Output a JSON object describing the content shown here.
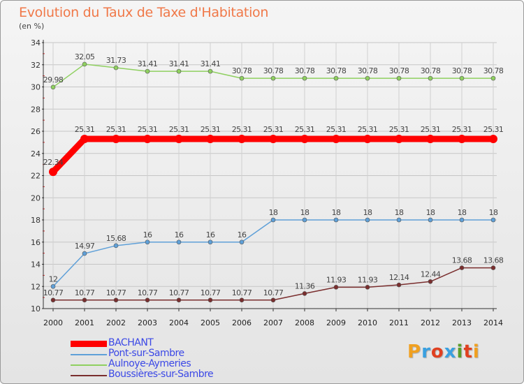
{
  "title": "Evolution du Taux de Taxe d'Habitation",
  "unit": "(en %)",
  "logo": "Proxiti",
  "colors": {
    "title": "#f07848",
    "legend_text": "#3b48e6",
    "logo_letters": [
      "#f0a020",
      "#3aa0e0",
      "#e04020",
      "#3aa0e0",
      "#5a9e2a",
      "#e04020",
      "#f0a020"
    ]
  },
  "chart_data": {
    "type": "line",
    "title": "Evolution du Taux de Taxe d'Habitation",
    "ylabel": "(en %)",
    "xlabel": "",
    "ylim": [
      10,
      34
    ],
    "yticks": [
      10,
      12,
      14,
      16,
      18,
      20,
      22,
      24,
      26,
      28,
      30,
      32,
      34
    ],
    "grid": true,
    "legend_position": "bottom-left",
    "categories": [
      "2000",
      "2001",
      "2002",
      "2003",
      "2004",
      "2005",
      "2006",
      "2007",
      "2008",
      "2009",
      "2010",
      "2011",
      "2012",
      "2013",
      "2014"
    ],
    "series": [
      {
        "name": "BACHANT",
        "color": "#ff0000",
        "style": "bold",
        "values": [
          22.34,
          25.31,
          25.31,
          25.31,
          25.31,
          25.31,
          25.31,
          25.31,
          25.31,
          25.31,
          25.31,
          25.31,
          25.31,
          25.31,
          25.31
        ],
        "labels": [
          "22.34",
          "25.31",
          "25.31",
          "25.31",
          "25.31",
          "25.31",
          "25.31",
          "25.31",
          "25.31",
          "25.31",
          "25.31",
          "25.31",
          "25.31",
          "25.31",
          "25.31"
        ]
      },
      {
        "name": "Pont-sur-Sambre",
        "color": "#5fa0d8",
        "style": "thin",
        "values": [
          12,
          14.97,
          15.68,
          16,
          16,
          16,
          16,
          18,
          18,
          18,
          18,
          18,
          18,
          18,
          18
        ],
        "labels": [
          "12",
          "14.97",
          "15.68",
          "16",
          "16",
          "16",
          "16",
          "18",
          "18",
          "18",
          "18",
          "18",
          "18",
          "18",
          "18"
        ]
      },
      {
        "name": "Aulnoye-Aymeries",
        "color": "#8fd060",
        "style": "thin",
        "values": [
          29.98,
          32.05,
          31.73,
          31.41,
          31.41,
          31.41,
          30.78,
          30.78,
          30.78,
          30.78,
          30.78,
          30.78,
          30.78,
          30.78,
          30.78
        ],
        "labels": [
          "29.98",
          "32.05",
          "31.73",
          "31.41",
          "31.41",
          "31.41",
          "30.78",
          "30.78",
          "30.78",
          "30.78",
          "30.78",
          "30.78",
          "30.78",
          "30.78",
          "30.78"
        ]
      },
      {
        "name": "Boussières-sur-Sambre",
        "color": "#7a2e2e",
        "style": "thin",
        "values": [
          10.77,
          10.77,
          10.77,
          10.77,
          10.77,
          10.77,
          10.77,
          10.77,
          11.36,
          11.93,
          11.93,
          12.14,
          12.44,
          13.68,
          13.68
        ],
        "labels": [
          "10.77",
          "10.77",
          "10.77",
          "10.77",
          "10.77",
          "10.77",
          "10.77",
          "10.77",
          "11.36",
          "11.93",
          "11.93",
          "12.14",
          "12.44",
          "13.68",
          "13.68"
        ]
      }
    ]
  }
}
